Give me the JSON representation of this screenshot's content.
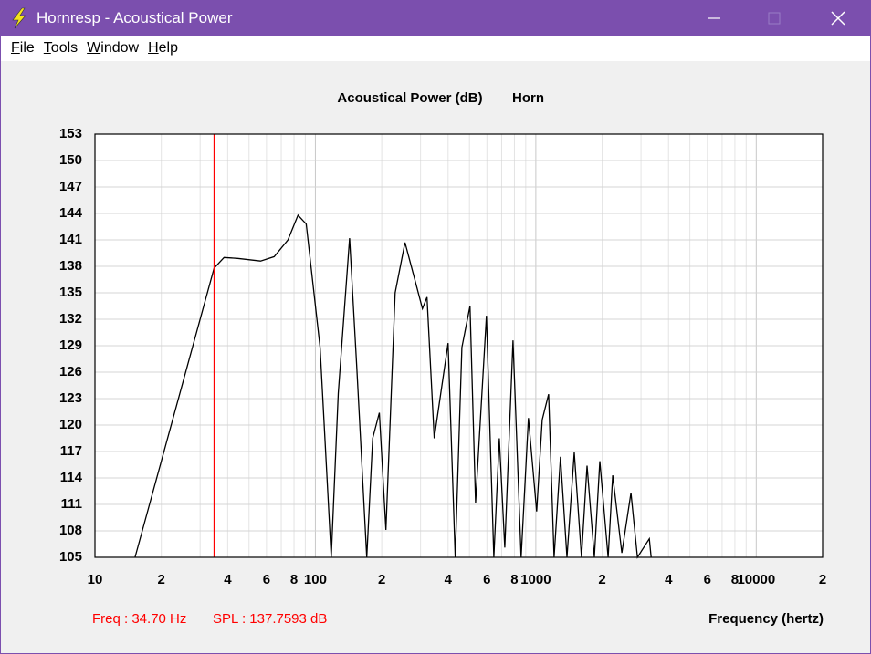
{
  "window": {
    "title": "Hornresp - Acoustical Power"
  },
  "menu": [
    "File",
    "Tools",
    "Window",
    "Help"
  ],
  "chart_data": {
    "type": "line",
    "title": "Acoustical Power (dB)",
    "subtitle": "Horn",
    "x_label": "Frequency (hertz)",
    "log_x": true,
    "grid": true,
    "color": "#000000",
    "x": [
      15.2,
      34.7,
      38.5,
      44.4,
      56.4,
      65.0,
      75.1,
      83.4,
      90.9,
      105,
      118,
      127,
      143,
      154,
      171,
      182,
      195,
      209,
      230,
      255,
      286,
      306,
      321,
      346,
      400,
      431,
      462,
      503,
      533,
      597,
      645,
      683,
      723,
      788,
      858,
      926,
      1009,
      1069,
      1143,
      1210,
      1294,
      1384,
      1494,
      1612,
      1708,
      1844,
      1952,
      2128,
      2233,
      2456,
      2702,
      2890,
      3273,
      3337
    ],
    "values": [
      105,
      137.8,
      139.0,
      138.9,
      138.6,
      139.1,
      141.0,
      143.8,
      142.8,
      128.8,
      105,
      123.6,
      141.2,
      126.7,
      105,
      118.5,
      121.4,
      108.1,
      135,
      140.7,
      136.0,
      133.2,
      134.5,
      118.5,
      129.3,
      105,
      128.8,
      133.5,
      111.2,
      132.4,
      105,
      118.5,
      106.1,
      129.6,
      105,
      120.8,
      110.2,
      120.6,
      123.5,
      105,
      116.4,
      105,
      116.9,
      105,
      115.4,
      105,
      115.9,
      105,
      114.3,
      105.5,
      112.3,
      105,
      107.1,
      105
    ],
    "xlim": [
      10,
      20000
    ],
    "ylim": [
      105,
      153
    ],
    "xticks": [
      10,
      {
        "value": 20,
        "label": "2"
      },
      {
        "value": 40,
        "label": "4"
      },
      {
        "value": 60,
        "label": "6"
      },
      {
        "value": 80,
        "label": "8"
      },
      100,
      {
        "value": 200,
        "label": "2"
      },
      {
        "value": 400,
        "label": "4"
      },
      {
        "value": 600,
        "label": "6"
      },
      {
        "value": 800,
        "label": "8"
      },
      1000,
      {
        "value": 2000,
        "label": "2"
      },
      {
        "value": 4000,
        "label": "4"
      },
      {
        "value": 6000,
        "label": "6"
      },
      {
        "value": 8000,
        "label": "8"
      },
      10000,
      {
        "value": 20000,
        "label": "2"
      }
    ],
    "minor_xticks": [
      30,
      50,
      70,
      90,
      300,
      500,
      700,
      900,
      3000,
      5000,
      7000,
      9000
    ],
    "yticks": [
      105,
      108,
      111,
      114,
      117,
      120,
      123,
      126,
      129,
      132,
      135,
      138,
      141,
      144,
      147,
      150,
      153
    ],
    "cursor_x": 34.7,
    "cursor_color": "#ff0000",
    "annotations": [
      "Freq : 34.70 Hz",
      "SPL : 137.7593 dB"
    ]
  }
}
